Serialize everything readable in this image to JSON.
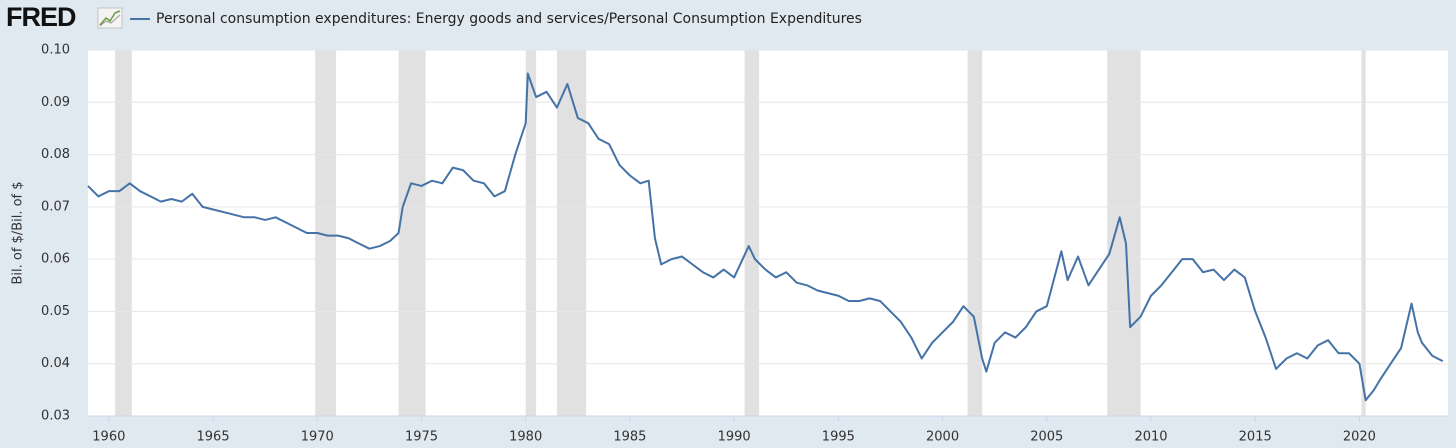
{
  "chart_data": {
    "type": "line",
    "logo": "FRED",
    "ylabel": "Bil. of $/Bil. of $",
    "xlim": [
      1959,
      2024.25
    ],
    "ylim": [
      0.03,
      0.1
    ],
    "xticks": [
      1960,
      1965,
      1970,
      1975,
      1980,
      1985,
      1990,
      1995,
      2000,
      2005,
      2010,
      2015,
      2020
    ],
    "yticks": [
      0.03,
      0.04,
      0.05,
      0.06,
      0.07,
      0.08,
      0.09,
      {
        "value": 0.1,
        "label": "0.10"
      }
    ],
    "grid": true,
    "shaded_periods": [
      [
        1960.3,
        1961.1
      ],
      [
        1969.9,
        1970.9
      ],
      [
        1973.9,
        1975.2
      ],
      [
        1980.0,
        1980.5
      ],
      [
        1981.5,
        1982.9
      ],
      [
        1990.5,
        1991.2
      ],
      [
        2001.2,
        2001.9
      ],
      [
        2007.9,
        2009.5
      ],
      [
        2020.1,
        2020.3
      ]
    ],
    "shade_color": "#e1e1e1",
    "x": [
      1959.0,
      1959.5,
      1960.0,
      1960.5,
      1961.0,
      1961.5,
      1962.0,
      1962.5,
      1963.0,
      1963.5,
      1964.0,
      1964.5,
      1965.0,
      1965.5,
      1966.0,
      1966.5,
      1967.0,
      1967.5,
      1968.0,
      1968.5,
      1969.0,
      1969.5,
      1970.0,
      1970.5,
      1971.0,
      1971.5,
      1972.0,
      1972.5,
      1973.0,
      1973.5,
      1973.9,
      1974.1,
      1974.5,
      1975.0,
      1975.5,
      1976.0,
      1976.5,
      1977.0,
      1977.5,
      1978.0,
      1978.5,
      1979.0,
      1979.5,
      1980.0,
      1980.1,
      1980.5,
      1981.0,
      1981.5,
      1982.0,
      1982.5,
      1983.0,
      1983.5,
      1984.0,
      1984.5,
      1985.0,
      1985.5,
      1985.9,
      1986.2,
      1986.5,
      1987.0,
      1987.5,
      1988.0,
      1988.5,
      1989.0,
      1989.5,
      1990.0,
      1990.7,
      1991.0,
      1991.5,
      1992.0,
      1992.5,
      1993.0,
      1993.5,
      1994.0,
      1994.5,
      1995.0,
      1995.5,
      1996.0,
      1996.5,
      1997.0,
      1997.5,
      1998.0,
      1998.5,
      1999.0,
      1999.5,
      2000.0,
      2000.5,
      2001.0,
      2001.5,
      2001.9,
      2002.1,
      2002.5,
      2003.0,
      2003.5,
      2004.0,
      2004.5,
      2005.0,
      2005.7,
      2006.0,
      2006.5,
      2007.0,
      2007.5,
      2008.0,
      2008.5,
      2008.8,
      2009.0,
      2009.5,
      2010.0,
      2010.5,
      2011.0,
      2011.5,
      2012.0,
      2012.5,
      2013.0,
      2013.5,
      2014.0,
      2014.5,
      2015.0,
      2015.5,
      2016.0,
      2016.5,
      2017.0,
      2017.5,
      2018.0,
      2018.5,
      2019.0,
      2019.5,
      2020.0,
      2020.3,
      2020.7,
      2021.0,
      2021.5,
      2022.0,
      2022.5,
      2022.8,
      2023.0,
      2023.5,
      2024.0
    ],
    "series": [
      {
        "name": "Personal consumption expenditures: Energy goods and services/Personal Consumption Expenditures",
        "color": "#4572a7",
        "values": [
          0.074,
          0.072,
          0.073,
          0.073,
          0.0745,
          0.073,
          0.072,
          0.071,
          0.0715,
          0.071,
          0.0725,
          0.07,
          0.0695,
          0.069,
          0.0685,
          0.068,
          0.068,
          0.0675,
          0.068,
          0.067,
          0.066,
          0.065,
          0.065,
          0.0645,
          0.0645,
          0.064,
          0.063,
          0.062,
          0.0625,
          0.0635,
          0.065,
          0.07,
          0.0745,
          0.074,
          0.075,
          0.0745,
          0.0775,
          0.077,
          0.075,
          0.0745,
          0.072,
          0.073,
          0.08,
          0.086,
          0.0955,
          0.091,
          0.092,
          0.089,
          0.0935,
          0.087,
          0.086,
          0.083,
          0.082,
          0.078,
          0.076,
          0.0745,
          0.075,
          0.064,
          0.059,
          0.06,
          0.0605,
          0.059,
          0.0575,
          0.0565,
          0.058,
          0.0565,
          0.0625,
          0.06,
          0.058,
          0.0565,
          0.0575,
          0.0555,
          0.055,
          0.054,
          0.0535,
          0.053,
          0.052,
          0.052,
          0.0525,
          0.052,
          0.05,
          0.048,
          0.045,
          0.041,
          0.044,
          0.046,
          0.048,
          0.051,
          0.049,
          0.041,
          0.0385,
          0.044,
          0.046,
          0.045,
          0.047,
          0.05,
          0.051,
          0.0615,
          0.056,
          0.0605,
          0.055,
          0.058,
          0.061,
          0.068,
          0.063,
          0.047,
          0.049,
          0.053,
          0.055,
          0.0575,
          0.06,
          0.06,
          0.0575,
          0.058,
          0.056,
          0.058,
          0.0565,
          0.05,
          0.045,
          0.039,
          0.041,
          0.042,
          0.041,
          0.0435,
          0.0445,
          0.042,
          0.042,
          0.04,
          0.033,
          0.035,
          0.037,
          0.04,
          0.043,
          0.0515,
          0.046,
          0.044,
          0.0415,
          0.0405
        ]
      }
    ]
  }
}
